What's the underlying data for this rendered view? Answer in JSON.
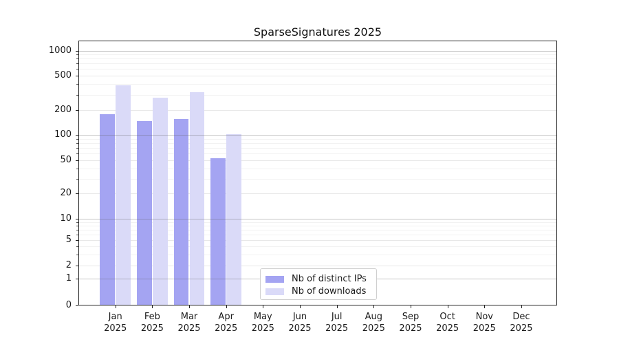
{
  "chart_data": {
    "type": "bar",
    "title": "SparseSignatures 2025",
    "categories": [
      "Jan",
      "Feb",
      "Mar",
      "Apr",
      "May",
      "Jun",
      "Jul",
      "Aug",
      "Sep",
      "Oct",
      "Nov",
      "Dec"
    ],
    "x_sublabel": "2025",
    "series": [
      {
        "name": "Nb of distinct IPs",
        "color": "#a4a4f2",
        "values": [
          177,
          146,
          156,
          53,
          0,
          0,
          0,
          0,
          0,
          0,
          0,
          0
        ]
      },
      {
        "name": "Nb of downloads",
        "color": "#dadaf8",
        "values": [
          388,
          278,
          323,
          102,
          0,
          0,
          0,
          0,
          0,
          0,
          0,
          0
        ]
      }
    ],
    "yscale": "symlog",
    "yticks": [
      0,
      1,
      2,
      5,
      10,
      20,
      50,
      100,
      200,
      500,
      1000
    ],
    "ylim": [
      0,
      1000
    ],
    "xlabel": "",
    "ylabel": "",
    "grid": true,
    "legend_position": "lower center"
  }
}
